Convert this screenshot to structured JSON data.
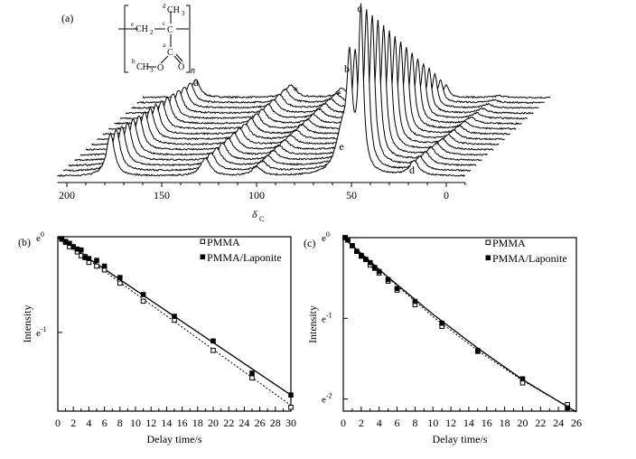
{
  "chart_data": [
    {
      "panel": "(a)",
      "type": "line",
      "subtype": "stacked 13C NMR spectra",
      "xlabel": "δ",
      "xlabel_sub": "C",
      "xlim": [
        205,
        -10
      ],
      "xticks": [
        200,
        150,
        100,
        50,
        0
      ],
      "n_traces": 16,
      "peaks": [
        {
          "label": "a",
          "ppm": 177,
          "height_front": 47,
          "height_back": 20,
          "width": 2.5
        },
        {
          "label": "*",
          "ppm": 127,
          "height_front": 20,
          "height_back": 14,
          "width": 3
        },
        {
          "label": "*",
          "ppm": 100,
          "height_front": 10,
          "height_back": 10,
          "width": 3
        },
        {
          "label": "e",
          "ppm": 55,
          "height_front": 45,
          "height_back": 6,
          "width": 4
        },
        {
          "label": "b",
          "ppm": 51,
          "height_front": 110,
          "height_back": 14,
          "width": 1.6
        },
        {
          "label": "c",
          "ppm": 45,
          "height_front": 177,
          "height_back": 12,
          "width": 1.5
        },
        {
          "label": "d",
          "ppm": 17,
          "height_front": 16,
          "height_back": 2,
          "width": 3
        }
      ],
      "structure": {
        "e_sup": "e",
        "e_group": "CH",
        "e_sub": "2",
        "d_sup": "d",
        "d_group": "CH",
        "d_sub": "3",
        "c_sup": "c",
        "c_atom": "C",
        "a_sup": "a",
        "a_atom": "C",
        "b_sup": "b",
        "b_group": "CH",
        "b_sub": "3",
        "o_ester": "O",
        "o_carbonyl": "O",
        "repeat": "n"
      }
    },
    {
      "panel": "(b)",
      "type": "scatter",
      "xlabel": "Delay time/s",
      "ylabel": "Intensity",
      "xlim": [
        0,
        30
      ],
      "ylim_ln": [
        -1.83,
        0.01
      ],
      "xticks": [
        0,
        2,
        4,
        6,
        8,
        10,
        12,
        14,
        16,
        18,
        20,
        22,
        24,
        26,
        28,
        30
      ],
      "yticks": [
        {
          "ln": 0,
          "base": "e",
          "exp": "0"
        },
        {
          "ln": -1,
          "base": "e",
          "exp": "-1"
        }
      ],
      "legend_position": "top-right",
      "series": [
        {
          "name": "PMMA",
          "marker": "open-square",
          "fit": "dotted",
          "x": [
            0.5,
            1,
            1.5,
            2,
            2.5,
            3,
            3.5,
            4,
            5,
            6,
            8,
            11,
            15,
            20,
            25,
            30
          ],
          "ln_y": [
            -0.016,
            -0.05,
            -0.095,
            -0.1,
            -0.15,
            -0.19,
            -0.2,
            -0.26,
            -0.3,
            -0.34,
            -0.48,
            -0.67,
            -0.87,
            -1.19,
            -1.48,
            -1.79
          ],
          "fit_ln": [
            [
              0,
              0
            ],
            [
              30,
              -1.77
            ]
          ]
        },
        {
          "name": "PMMA/Laponite",
          "marker": "filled-square",
          "fit": "solid",
          "x": [
            0.5,
            1,
            1.5,
            2,
            2.5,
            3,
            3.5,
            4,
            5,
            6,
            8,
            11,
            15,
            20,
            25,
            30
          ],
          "ln_y": [
            -0.01,
            -0.04,
            -0.06,
            -0.095,
            -0.12,
            -0.13,
            -0.21,
            -0.22,
            -0.24,
            -0.3,
            -0.42,
            -0.6,
            -0.83,
            -1.09,
            -1.43,
            -1.66
          ],
          "fit_ln": [
            [
              0,
              0
            ],
            [
              30,
              -1.66
            ]
          ]
        }
      ]
    },
    {
      "panel": "(c)",
      "type": "scatter",
      "xlabel": "Delay time/s",
      "ylabel": "Intensity",
      "xlim": [
        0,
        26
      ],
      "ylim_ln": [
        -2.15,
        0.0
      ],
      "xticks": [
        0,
        2,
        4,
        6,
        8,
        10,
        12,
        14,
        16,
        18,
        20,
        22,
        24,
        26
      ],
      "yticks": [
        {
          "ln": 0,
          "base": "e",
          "exp": "0"
        },
        {
          "ln": -1,
          "base": "e",
          "exp": "-1"
        },
        {
          "ln": -2,
          "base": "e",
          "exp": "-2"
        }
      ],
      "legend_position": "top-right",
      "series": [
        {
          "name": "PMMA",
          "marker": "open-square",
          "fit": "dotted",
          "x": [
            0.2,
            0.5,
            1,
            1.5,
            2,
            2.5,
            3,
            3.5,
            4,
            5,
            6,
            8,
            11,
            15,
            20,
            25
          ],
          "ln_y": [
            0,
            -0.03,
            -0.1,
            -0.17,
            -0.23,
            -0.27,
            -0.34,
            -0.38,
            -0.44,
            -0.54,
            -0.65,
            -0.83,
            -1.1,
            -1.41,
            -1.8,
            -2.07
          ],
          "fit_ln": [
            [
              0,
              0
            ],
            [
              5,
              -0.5
            ],
            [
              10,
              -0.98
            ],
            [
              15,
              -1.4
            ],
            [
              20,
              -1.77
            ],
            [
              26,
              -2.16
            ]
          ]
        },
        {
          "name": "PMMA/Laponite",
          "marker": "filled-square",
          "fit": "solid",
          "x": [
            0.2,
            0.5,
            1,
            1.5,
            2,
            2.5,
            3,
            3.5,
            4,
            5,
            6,
            8,
            11,
            15,
            20,
            25
          ],
          "ln_y": [
            0,
            -0.03,
            -0.1,
            -0.17,
            -0.22,
            -0.27,
            -0.31,
            -0.37,
            -0.42,
            -0.52,
            -0.63,
            -0.79,
            -1.06,
            -1.4,
            -1.75,
            -2.11
          ],
          "fit_ln": [
            [
              0,
              0
            ],
            [
              5,
              -0.49
            ],
            [
              10,
              -0.95
            ],
            [
              15,
              -1.37
            ],
            [
              20,
              -1.76
            ],
            [
              26,
              -2.16
            ]
          ]
        }
      ]
    }
  ]
}
